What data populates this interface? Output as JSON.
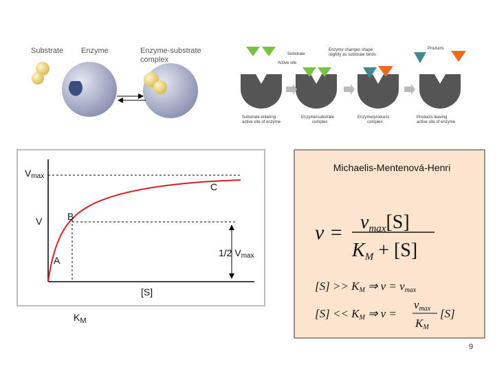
{
  "top_left": {
    "labels": [
      "Substrate",
      "Enzyme",
      "Enzyme-substrate",
      "complex"
    ]
  },
  "top_right": {
    "labels": [
      "Substrate",
      "Active site",
      "Enzyme changes shape",
      "slightly as substrate binds",
      "Products",
      "Substrate entering",
      "active site of enzyme",
      "Enzyme/substrate",
      "complex",
      "Enzyme/products",
      "complex",
      "Products leaving",
      "active site of enzyme"
    ]
  },
  "graph": {
    "vmax_label": "V",
    "vmax_sub": "max",
    "point_c": "C",
    "v_label": "V",
    "point_b": "B",
    "half_vmax": "1/2 V",
    "half_vmax_sub": "max",
    "point_a": "A",
    "x_label": "[S]",
    "km_label": "K",
    "km_sub": "M"
  },
  "equation": {
    "title": "Michaelis-Mentenová-Henri",
    "lhs": "v =",
    "numerator": "v",
    "numerator_sub": "max",
    "numerator_rest": "[S]",
    "denominator": "K",
    "denominator_sub": "M",
    "denominator_rest": " + [S]",
    "case1_left": "[S] >> K",
    "case1_sub": "M",
    "case1_right": " ⇒ v = v",
    "case1_right_sub": "max",
    "case2_left": "[S] << K",
    "case2_sub": "M",
    "case2_arrow": " ⇒ v =",
    "case2_num": "v",
    "case2_num_sub": "max",
    "case2_den": "K",
    "case2_den_sub": "M",
    "case2_rest": "[S]"
  },
  "page_number": "9"
}
